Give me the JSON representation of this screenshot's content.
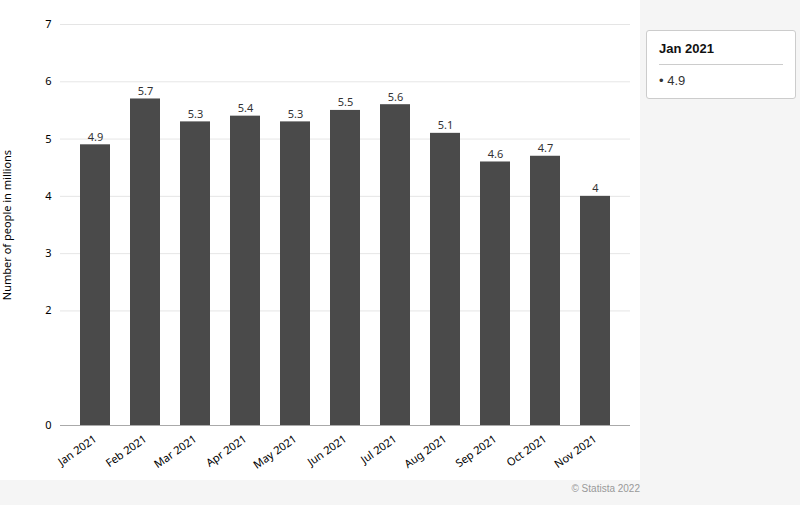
{
  "chart_data": {
    "type": "bar",
    "categories": [
      "Jan 2021",
      "Feb 2021",
      "Mar 2021",
      "Apr 2021",
      "May 2021",
      "Jun 2021",
      "Jul 2021",
      "Aug 2021",
      "Sep 2021",
      "Oct 2021",
      "Nov 2021"
    ],
    "values": [
      4.9,
      5.7,
      5.3,
      5.4,
      5.3,
      5.5,
      5.6,
      5.1,
      4.6,
      4.7,
      4.0
    ],
    "color": "#4a4a4a",
    "ylabel": "Number of people in millions",
    "ylim": [
      0,
      7
    ],
    "yticks": [
      0,
      2,
      3,
      4,
      5,
      6,
      7
    ],
    "grid": true,
    "data_labels": true,
    "annotations": [
      "Jan 2021",
      "• 4.9",
      "© Statista 2022"
    ]
  }
}
